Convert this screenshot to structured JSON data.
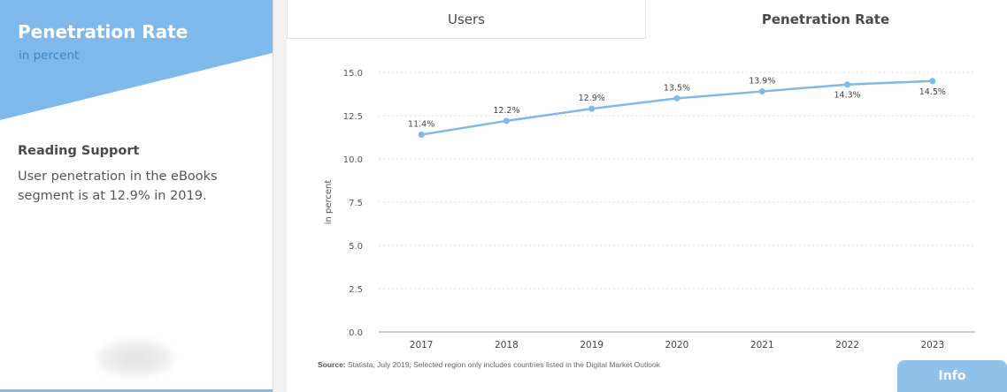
{
  "sidebar": {
    "title": "Penetration Rate",
    "subtitle": "in percent",
    "section_title": "Reading Support",
    "section_text": "User penetration in the eBooks segment is at 12.9% in 2019."
  },
  "tabs": [
    {
      "label": "Users"
    },
    {
      "label": "Penetration Rate"
    }
  ],
  "source": {
    "label": "Source:",
    "text": " Statista, July 2019; Selected region only includes countries listed in the Digital Market Outlook"
  },
  "info_button": "Info",
  "colors": {
    "accent": "#7fb8ea",
    "header_text": "#3f86c3"
  },
  "chart_data": {
    "type": "line",
    "x": [
      "2017",
      "2018",
      "2019",
      "2020",
      "2021",
      "2022",
      "2023"
    ],
    "series": [
      {
        "values": [
          11.4,
          12.2,
          12.9,
          13.5,
          13.9,
          14.3,
          14.5
        ]
      }
    ],
    "data_labels": [
      "11.4%",
      "12.2%",
      "12.9%",
      "13.5%",
      "13.9%",
      "14.3%",
      "14.5%"
    ],
    "ylabel": "in percent",
    "xlabel": "",
    "ylim": [
      0,
      15
    ],
    "yticks": [
      "0.0",
      "2.5",
      "5.0",
      "7.5",
      "10.0",
      "12.5",
      "15.0"
    ],
    "grid": true
  }
}
